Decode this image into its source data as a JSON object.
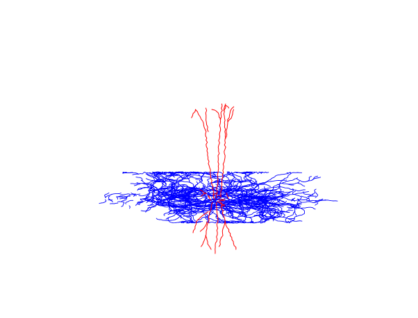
{
  "scene": {
    "background_color": "#ffffff",
    "axon_color": "#ff0000",
    "dendrite_color": "#0000ff"
  },
  "legend": {
    "red_label": "",
    "blue_label": ""
  }
}
